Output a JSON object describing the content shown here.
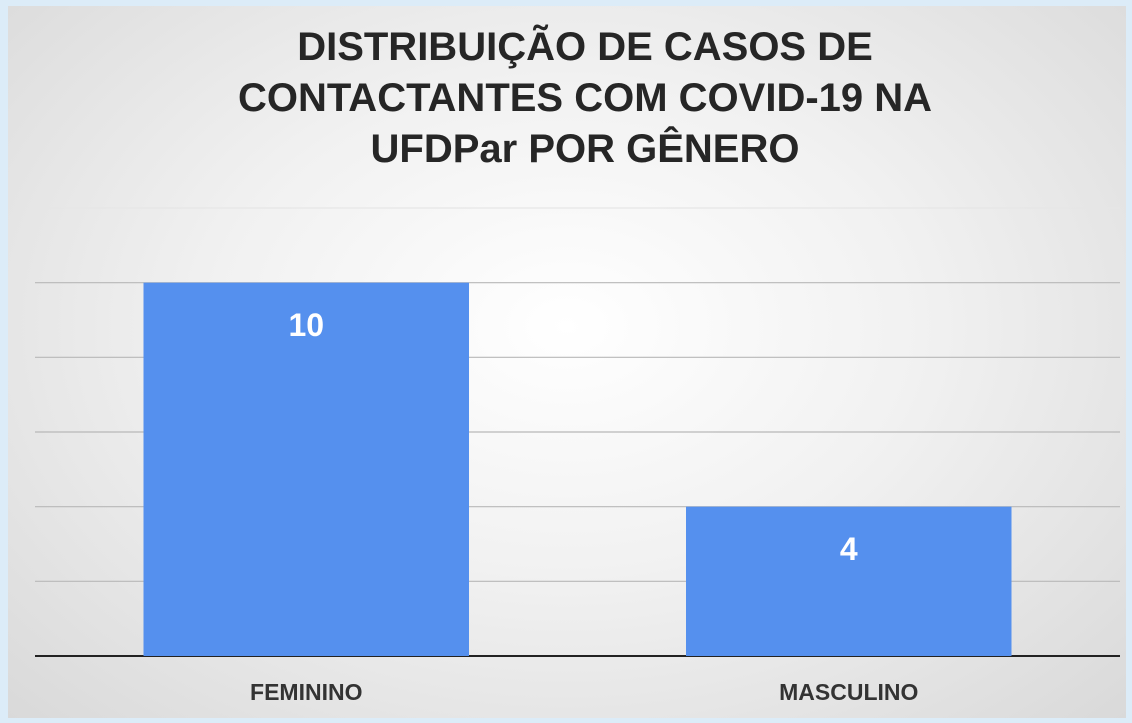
{
  "chart_data": {
    "type": "bar",
    "title": "DISTRIBUIÇÃO DE CASOS DE CONTACTANTES COM COVID-19 NA UFDPar POR GÊNERO",
    "categories": [
      "FEMININO",
      "MASCULINO"
    ],
    "values": [
      10,
      4
    ],
    "color": "#5590ee",
    "ylim": [
      0,
      12
    ],
    "yticks": [
      0,
      2,
      4,
      6,
      8,
      10,
      12
    ],
    "grid": true
  }
}
